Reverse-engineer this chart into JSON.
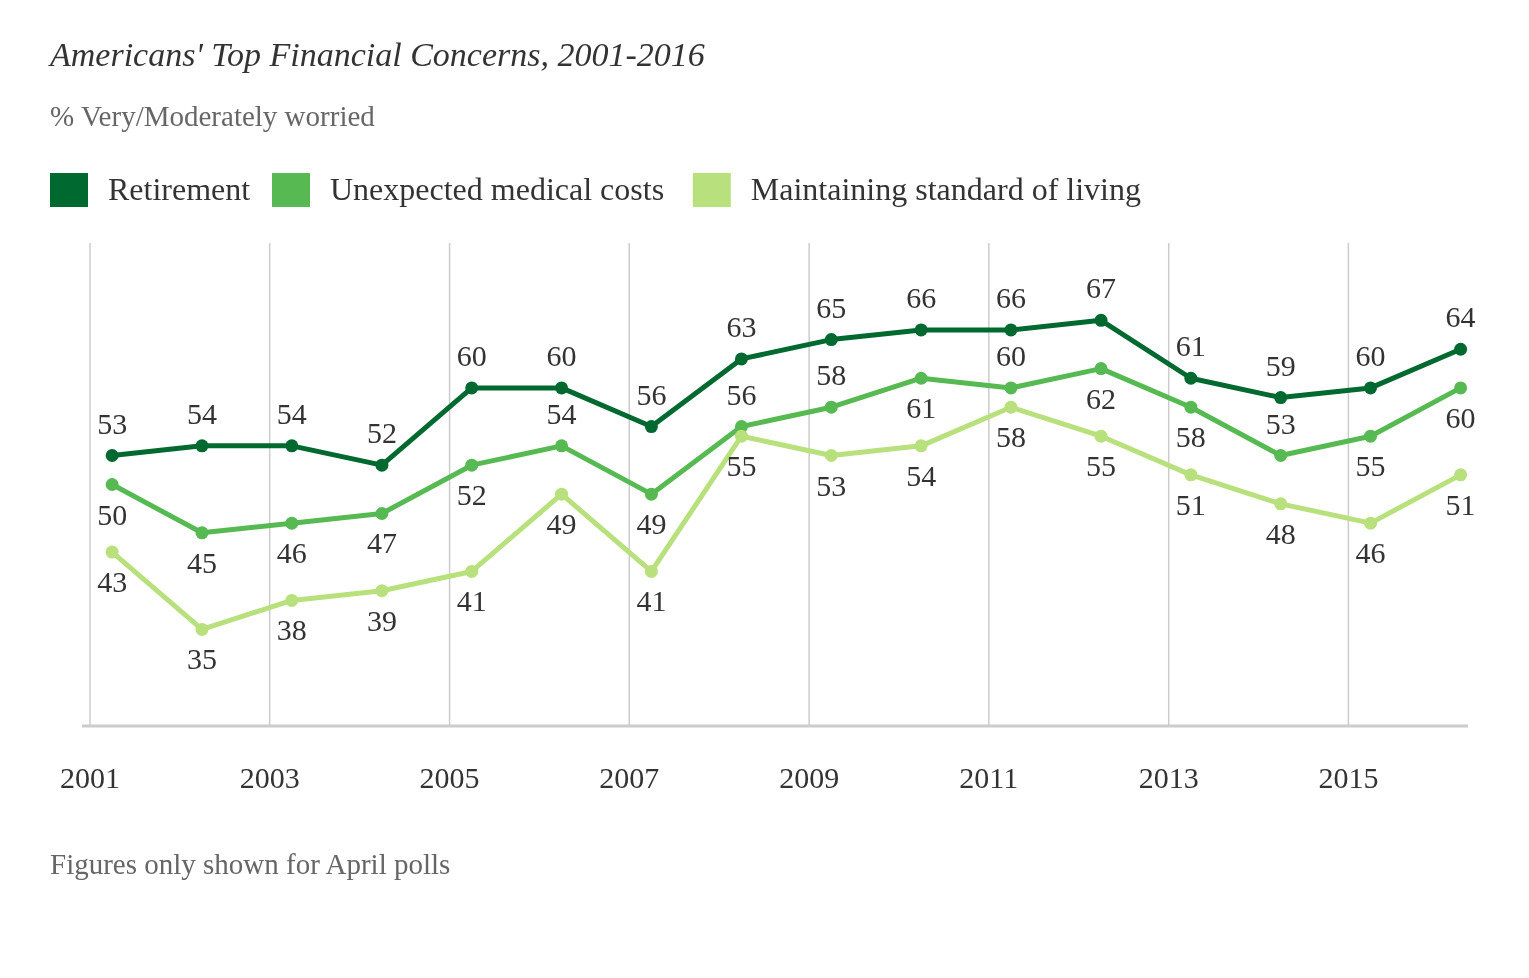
{
  "chart_data": {
    "type": "line",
    "title": "Americans' Top Financial Concerns, 2001-2016",
    "subtitle": "% Very/Moderately worried",
    "x": [
      "2001-04",
      "2002-04",
      "2003-04",
      "2004-04",
      "2005-04",
      "2006-04",
      "2007-04",
      "2008-04",
      "2009-04",
      "2010-04",
      "2011-04",
      "2012-04",
      "2013-04",
      "2014-04",
      "2015-04",
      "2016-04"
    ],
    "series": [
      {
        "name": "Retirement",
        "color": "#00692f",
        "values": [
          53,
          54,
          54,
          52,
          60,
          60,
          56,
          63,
          65,
          66,
          66,
          67,
          61,
          59,
          60,
          64
        ]
      },
      {
        "name": "Unexpected medical costs",
        "color": "#57b952",
        "values": [
          50,
          45,
          46,
          47,
          52,
          54,
          49,
          56,
          58,
          61,
          60,
          62,
          58,
          53,
          55,
          60
        ]
      },
      {
        "name": "Maintaining standard of living",
        "color": "#b8e07c",
        "values": [
          43,
          35,
          38,
          39,
          41,
          49,
          41,
          55,
          53,
          54,
          58,
          55,
          51,
          48,
          46,
          51
        ]
      }
    ],
    "xlim": [
      "2001-01",
      "2016-05"
    ],
    "xticks": [
      {
        "value": "2001-01",
        "label": "2001"
      },
      {
        "value": "2003-01",
        "label": "2003"
      },
      {
        "value": "2005-01",
        "label": "2005"
      },
      {
        "value": "2007-01",
        "label": "2007"
      },
      {
        "value": "2009-01",
        "label": "2009"
      },
      {
        "value": "2011-01",
        "label": "2011"
      },
      {
        "value": "2013-01",
        "label": "2013"
      },
      {
        "value": "2015-01",
        "label": "2015"
      }
    ],
    "ylim": [
      25,
      75
    ],
    "tick_labels": "x",
    "grid": "x",
    "legend": "top left",
    "marker": "circle",
    "line_style": "solid",
    "data_labels": true,
    "annotations": [
      "Figures only shown for April polls"
    ]
  }
}
